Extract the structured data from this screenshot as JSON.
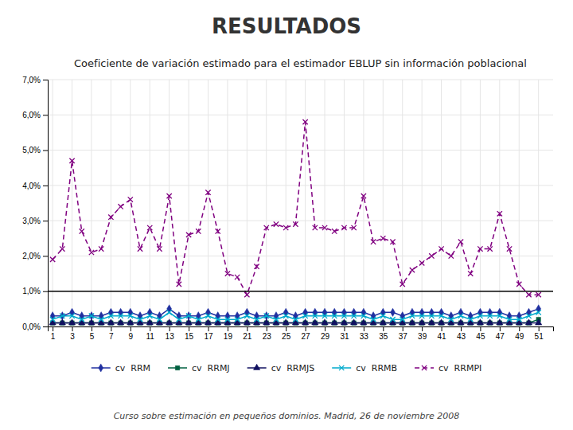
{
  "chart_data": {
    "type": "line",
    "title": "Coeficiente de variación estimado para el estimador EBLUP sin información poblacional",
    "annotations": [
      "RESULTADOS",
      "Curso sobre estimación en pequeños dominios. Madrid, 26 de noviembre 2008"
    ],
    "x": [
      1,
      2,
      3,
      4,
      5,
      6,
      7,
      8,
      9,
      10,
      11,
      12,
      13,
      14,
      15,
      16,
      17,
      18,
      19,
      20,
      21,
      22,
      23,
      24,
      25,
      26,
      27,
      28,
      29,
      30,
      31,
      32,
      33,
      34,
      35,
      36,
      37,
      38,
      39,
      40,
      41,
      42,
      43,
      44,
      45,
      46,
      47,
      48,
      49,
      50,
      51
    ],
    "xlim": [
      0.5,
      52.5
    ],
    "xticks": [
      1,
      3,
      5,
      7,
      9,
      11,
      13,
      15,
      17,
      19,
      21,
      23,
      25,
      27,
      29,
      31,
      33,
      35,
      37,
      39,
      41,
      43,
      45,
      47,
      49,
      51
    ],
    "ylim": [
      0.0,
      0.07
    ],
    "yticks": [
      {
        "value": 0.0,
        "label": "0,0%"
      },
      {
        "value": 0.01,
        "label": "1,0%"
      },
      {
        "value": 0.02,
        "label": "2,0%"
      },
      {
        "value": 0.03,
        "label": "3,0%"
      },
      {
        "value": 0.04,
        "label": "4,0%"
      },
      {
        "value": 0.05,
        "label": "5,0%"
      },
      {
        "value": 0.06,
        "label": "6,0%"
      },
      {
        "value": 0.07,
        "label": "7,0%"
      }
    ],
    "hline": 0.01,
    "grid": true,
    "legend": "bottom",
    "series": [
      {
        "name": "cv  RRM",
        "color": "#2030a0",
        "marker": "diamond",
        "line_style": "solid",
        "values": [
          0.003,
          0.003,
          0.004,
          0.003,
          0.003,
          0.003,
          0.004,
          0.004,
          0.004,
          0.003,
          0.004,
          0.003,
          0.005,
          0.003,
          0.003,
          0.003,
          0.004,
          0.003,
          0.003,
          0.003,
          0.004,
          0.003,
          0.003,
          0.003,
          0.004,
          0.003,
          0.004,
          0.004,
          0.004,
          0.004,
          0.004,
          0.004,
          0.004,
          0.003,
          0.004,
          0.004,
          0.003,
          0.004,
          0.004,
          0.004,
          0.004,
          0.003,
          0.004,
          0.003,
          0.004,
          0.004,
          0.004,
          0.003,
          0.003,
          0.004,
          0.005
        ]
      },
      {
        "name": "cv  RRMJ",
        "color": "#006040",
        "marker": "square",
        "line_style": "solid",
        "values": [
          0.001,
          0.001,
          0.001,
          0.001,
          0.001,
          0.001,
          0.001,
          0.001,
          0.001,
          0.001,
          0.001,
          0.001,
          0.001,
          0.001,
          0.001,
          0.001,
          0.001,
          0.001,
          0.001,
          0.001,
          0.001,
          0.001,
          0.001,
          0.001,
          0.001,
          0.001,
          0.001,
          0.001,
          0.001,
          0.001,
          0.001,
          0.001,
          0.001,
          0.001,
          0.001,
          0.001,
          0.001,
          0.001,
          0.001,
          0.001,
          0.001,
          0.001,
          0.001,
          0.001,
          0.001,
          0.001,
          0.001,
          0.001,
          0.001,
          0.001,
          0.002
        ]
      },
      {
        "name": "cv  RRMJS",
        "color": "#101060",
        "marker": "triangle",
        "line_style": "solid",
        "values": [
          0.001,
          0.001,
          0.001,
          0.001,
          0.001,
          0.001,
          0.001,
          0.001,
          0.001,
          0.001,
          0.001,
          0.001,
          0.001,
          0.001,
          0.001,
          0.001,
          0.001,
          0.001,
          0.001,
          0.001,
          0.001,
          0.001,
          0.001,
          0.001,
          0.001,
          0.001,
          0.001,
          0.001,
          0.001,
          0.001,
          0.001,
          0.001,
          0.001,
          0.001,
          0.001,
          0.001,
          0.001,
          0.001,
          0.001,
          0.001,
          0.001,
          0.001,
          0.001,
          0.001,
          0.001,
          0.001,
          0.001,
          0.001,
          0.001,
          0.001,
          0.001
        ]
      },
      {
        "name": "cv  RRMB",
        "color": "#00aacc",
        "marker": "x",
        "line_style": "solid",
        "values": [
          0.002,
          0.003,
          0.003,
          0.002,
          0.003,
          0.002,
          0.003,
          0.003,
          0.003,
          0.002,
          0.003,
          0.002,
          0.004,
          0.002,
          0.003,
          0.002,
          0.003,
          0.002,
          0.002,
          0.002,
          0.003,
          0.002,
          0.003,
          0.002,
          0.003,
          0.002,
          0.003,
          0.003,
          0.003,
          0.003,
          0.003,
          0.003,
          0.003,
          0.002,
          0.003,
          0.002,
          0.002,
          0.003,
          0.003,
          0.003,
          0.003,
          0.002,
          0.003,
          0.002,
          0.003,
          0.003,
          0.003,
          0.002,
          0.002,
          0.003,
          0.004
        ]
      },
      {
        "name": "cv  RRMPI",
        "color": "#800080",
        "marker": "x",
        "line_style": "dashed",
        "values": [
          0.019,
          0.022,
          0.047,
          0.027,
          0.021,
          0.022,
          0.031,
          0.034,
          0.036,
          0.022,
          0.028,
          0.022,
          0.037,
          0.012,
          0.026,
          0.027,
          0.038,
          0.027,
          0.015,
          0.014,
          0.009,
          0.017,
          0.028,
          0.029,
          0.028,
          0.029,
          0.058,
          0.028,
          0.028,
          0.027,
          0.028,
          0.028,
          0.037,
          0.024,
          0.025,
          0.024,
          0.012,
          0.016,
          0.018,
          0.02,
          0.022,
          0.02,
          0.024,
          0.015,
          0.022,
          0.022,
          0.032,
          0.022,
          0.012,
          0.009,
          0.009
        ]
      }
    ]
  }
}
